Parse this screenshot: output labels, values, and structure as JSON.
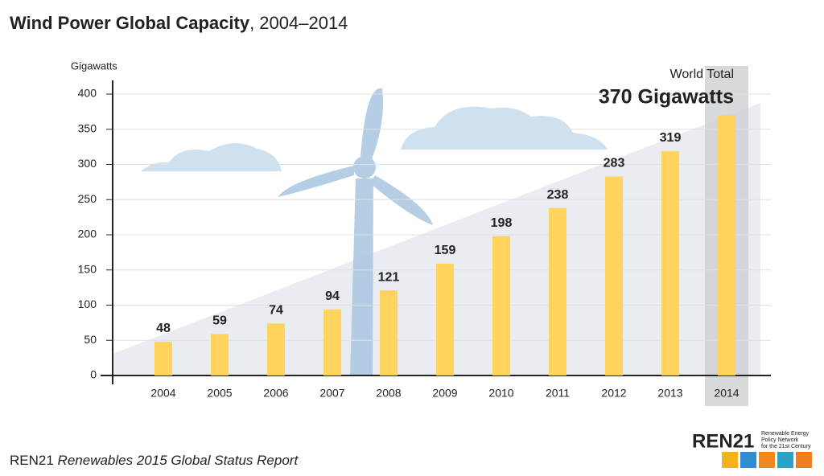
{
  "chart_data": {
    "type": "bar",
    "title": "Wind Power Global Capacity",
    "title_years": ", 2004–2014",
    "y_label": "Gigawatts",
    "annotation_label": "World Total",
    "annotation_value": "370 Gigawatts",
    "categories": [
      "2004",
      "2005",
      "2006",
      "2007",
      "2008",
      "2009",
      "2010",
      "2011",
      "2012",
      "2013",
      "2014"
    ],
    "values": [
      48,
      59,
      74,
      94,
      121,
      159,
      198,
      238,
      283,
      319,
      370
    ],
    "color": "#ffd35c",
    "ylim": [
      0,
      400
    ],
    "yticks": [
      0,
      50,
      100,
      150,
      200,
      250,
      300,
      350,
      400
    ],
    "grid": true,
    "source_org": "REN21",
    "source_title": "Renewables 2015 Global Status Report",
    "logo_name": "REN21",
    "logo_tagline": [
      "Renewable Energy",
      "Policy Network",
      "for the 21st Century"
    ]
  }
}
